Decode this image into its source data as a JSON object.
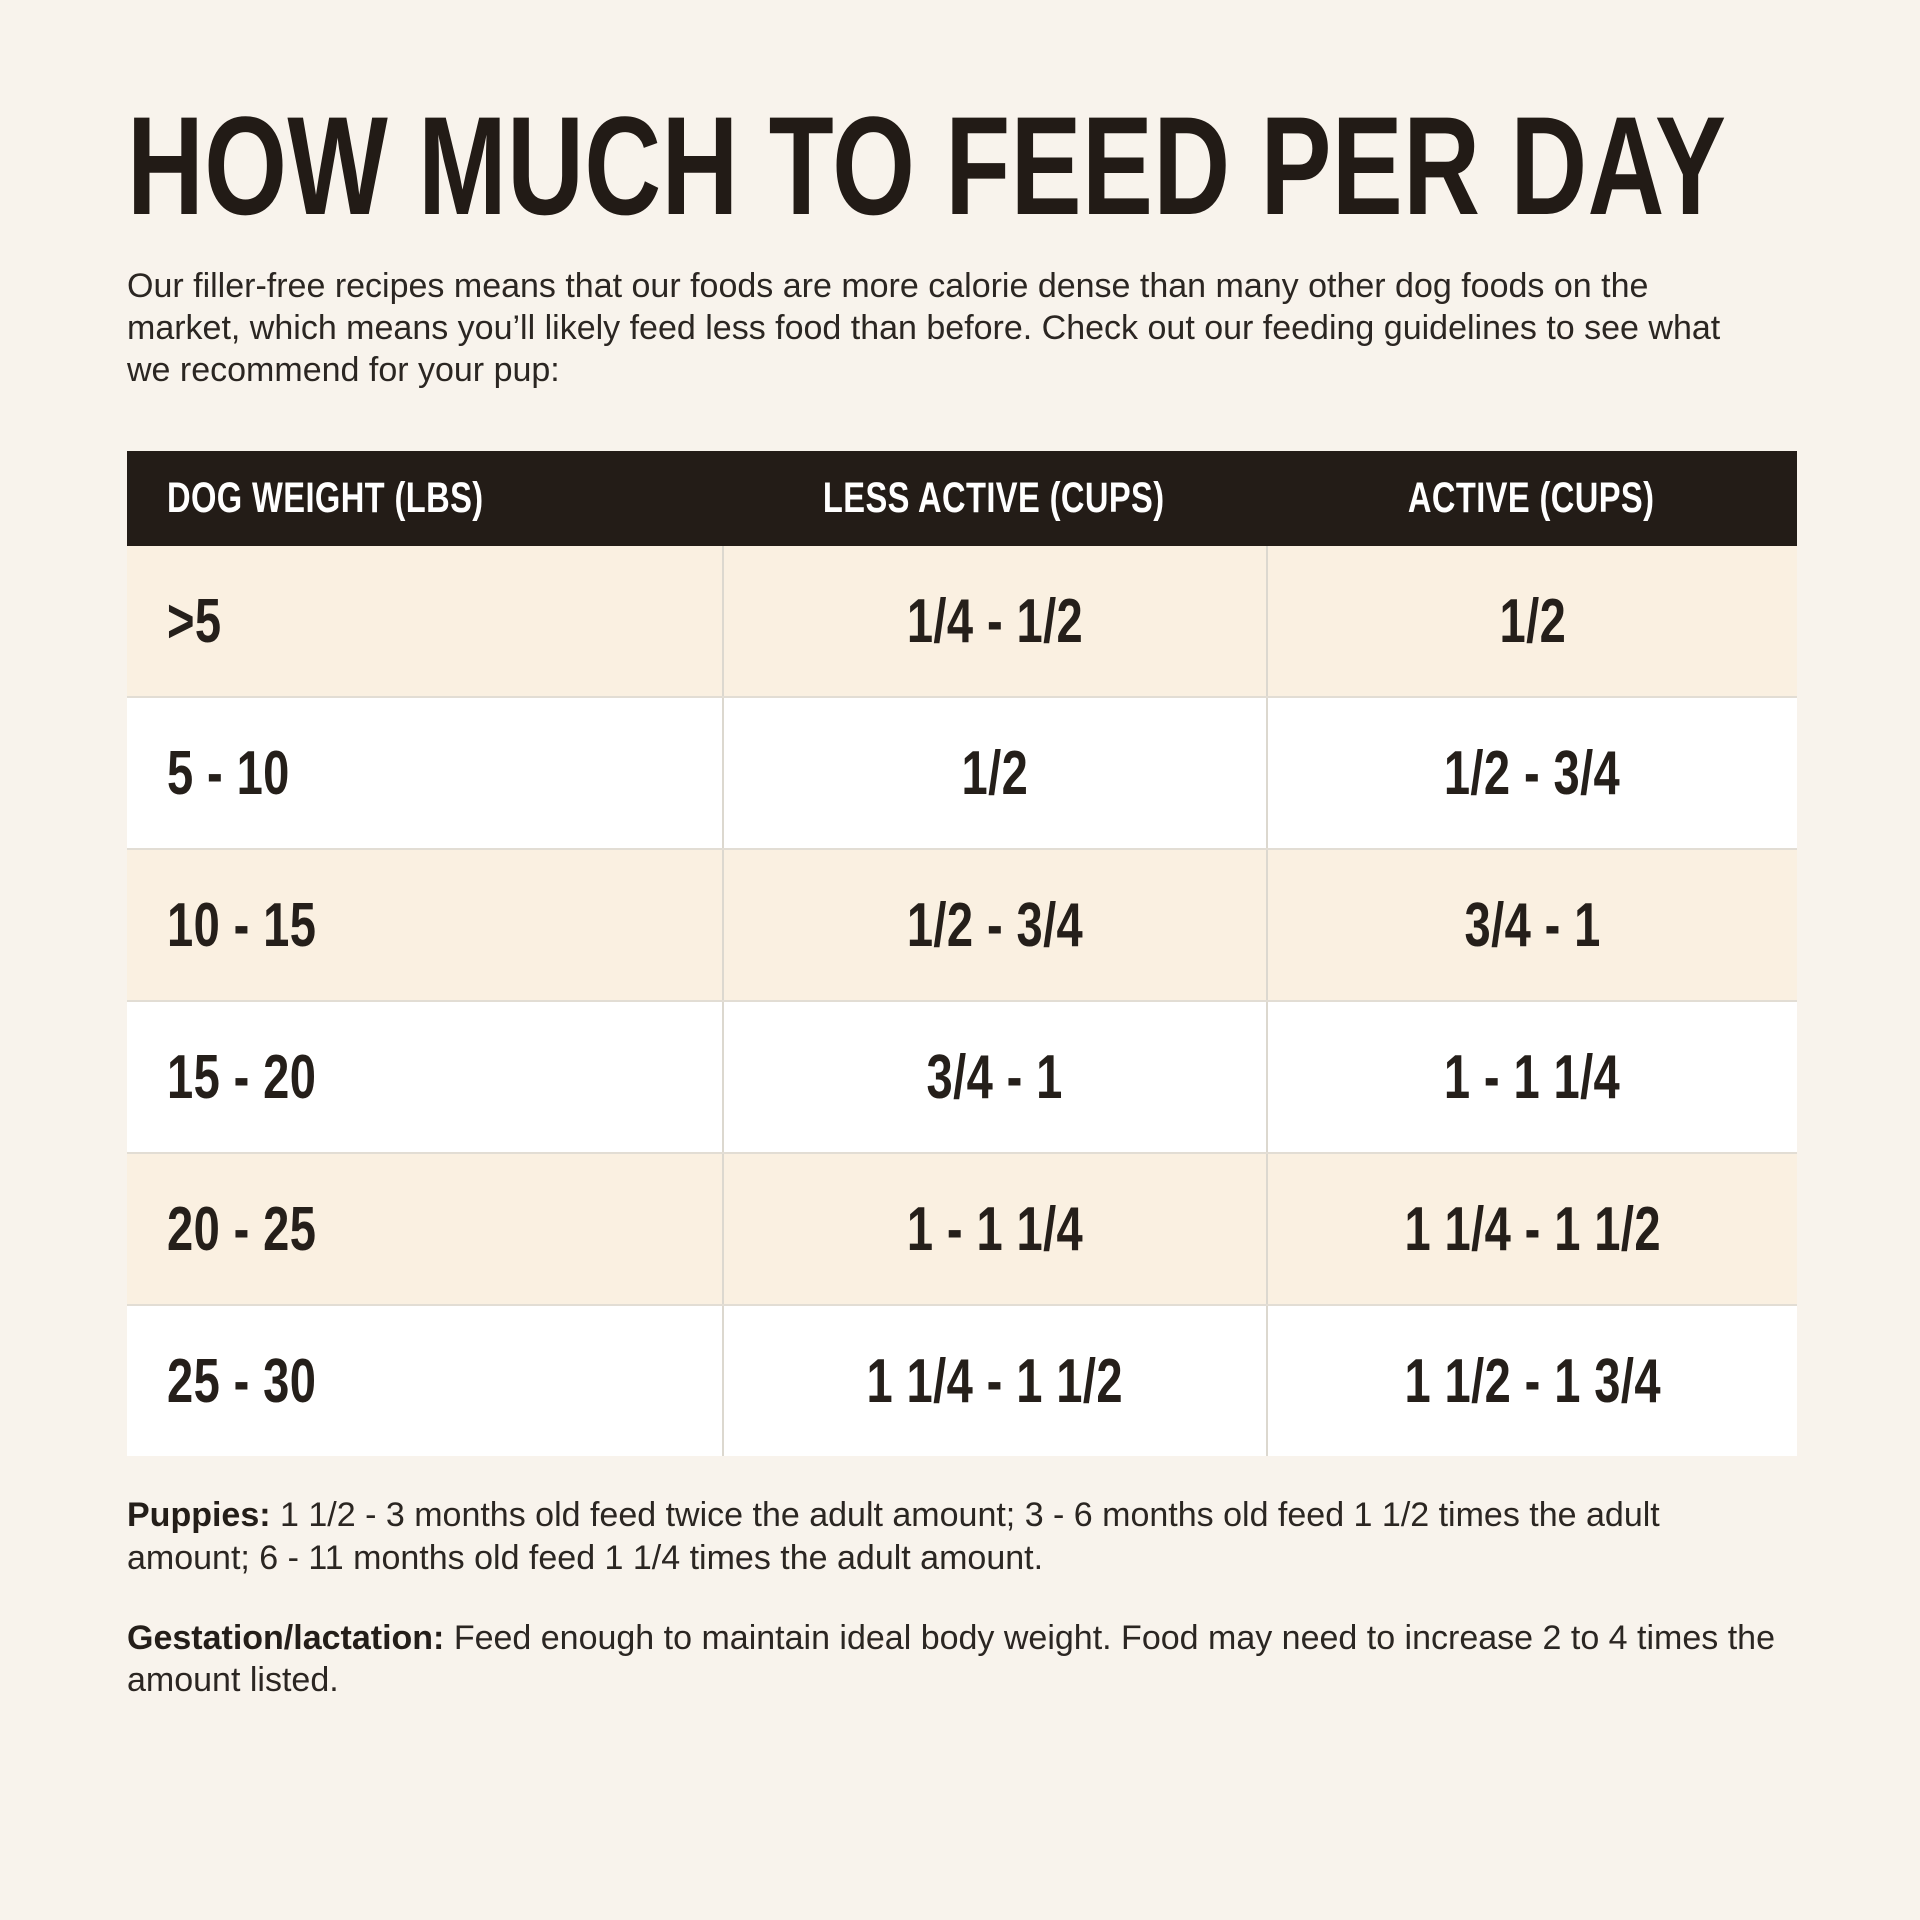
{
  "page": {
    "title": "HOW MUCH TO FEED PER DAY",
    "intro": "Our filler-free recipes means that our foods are more calorie dense than many other dog foods on the market, which means you’ll likely feed less food than before. Check out our feeding guidelines to see what we recommend for your pup:"
  },
  "table": {
    "columns": [
      "DOG WEIGHT (LBS)",
      "LESS ACTIVE (CUPS)",
      "ACTIVE (CUPS)"
    ],
    "rows": [
      {
        "weight": ">5",
        "less_active": "1/4 - 1/2",
        "active": "1/2"
      },
      {
        "weight": "5 - 10",
        "less_active": "1/2",
        "active": "1/2 - 3/4"
      },
      {
        "weight": "10 - 15",
        "less_active": "1/2 - 3/4",
        "active": "3/4 - 1"
      },
      {
        "weight": "15 - 20",
        "less_active": "3/4 - 1",
        "active": "1 - 1 1/4"
      },
      {
        "weight": "20 - 25",
        "less_active": "1 - 1 1/4",
        "active": "1 1/4 - 1 1/2"
      },
      {
        "weight": "25 - 30",
        "less_active": "1 1/4 - 1 1/2",
        "active": "1 1/2 - 1 3/4"
      }
    ]
  },
  "notes": {
    "puppies_label": "Puppies:",
    "puppies_text": " 1 1/2 - 3 months old feed twice the adult amount; 3 - 6 months old feed 1 1/2 times the adult amount; 6 - 11 months old feed 1 1/4 times the adult amount.",
    "gestation_label": "Gestation/lactation:",
    "gestation_text": " Feed enough to maintain ideal body weight. Food may need to increase 2 to 4 times the amount listed."
  },
  "colors": {
    "page_background": "#f8f3ec",
    "row_cream": "#faf0e1",
    "row_white": "#ffffff",
    "header_background": "#231c17",
    "header_text": "#ffffff",
    "body_text": "#241f1b"
  }
}
